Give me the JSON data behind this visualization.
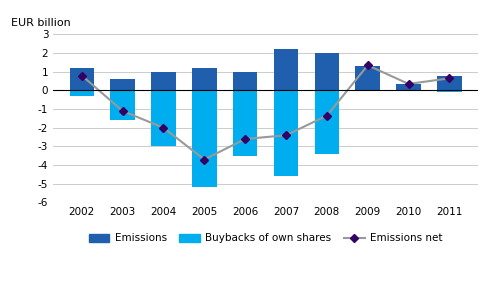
{
  "years": [
    2002,
    2003,
    2004,
    2005,
    2006,
    2007,
    2008,
    2009,
    2010,
    2011
  ],
  "emissions": [
    1.2,
    0.6,
    1.0,
    1.2,
    1.0,
    2.2,
    2.0,
    1.3,
    0.35,
    0.8
  ],
  "buybacks": [
    -0.3,
    -1.6,
    -3.0,
    -5.2,
    -3.5,
    -4.6,
    -3.4,
    0.0,
    0.0,
    -0.1
  ],
  "emissions_net": [
    0.8,
    -1.1,
    -2.0,
    -3.7,
    -2.6,
    -2.4,
    -1.35,
    1.35,
    0.35,
    0.65
  ],
  "emission_color": "#1F5FAD",
  "buyback_color": "#00AEEF",
  "net_color": "#999999",
  "net_marker_color": "#330066",
  "ylabel": "EUR billion",
  "ylim": [
    -6,
    3
  ],
  "yticks": [
    -6,
    -5,
    -4,
    -3,
    -2,
    -1,
    0,
    1,
    2,
    3
  ],
  "bar_width": 0.6,
  "background_color": "#ffffff",
  "grid_color": "#cccccc"
}
